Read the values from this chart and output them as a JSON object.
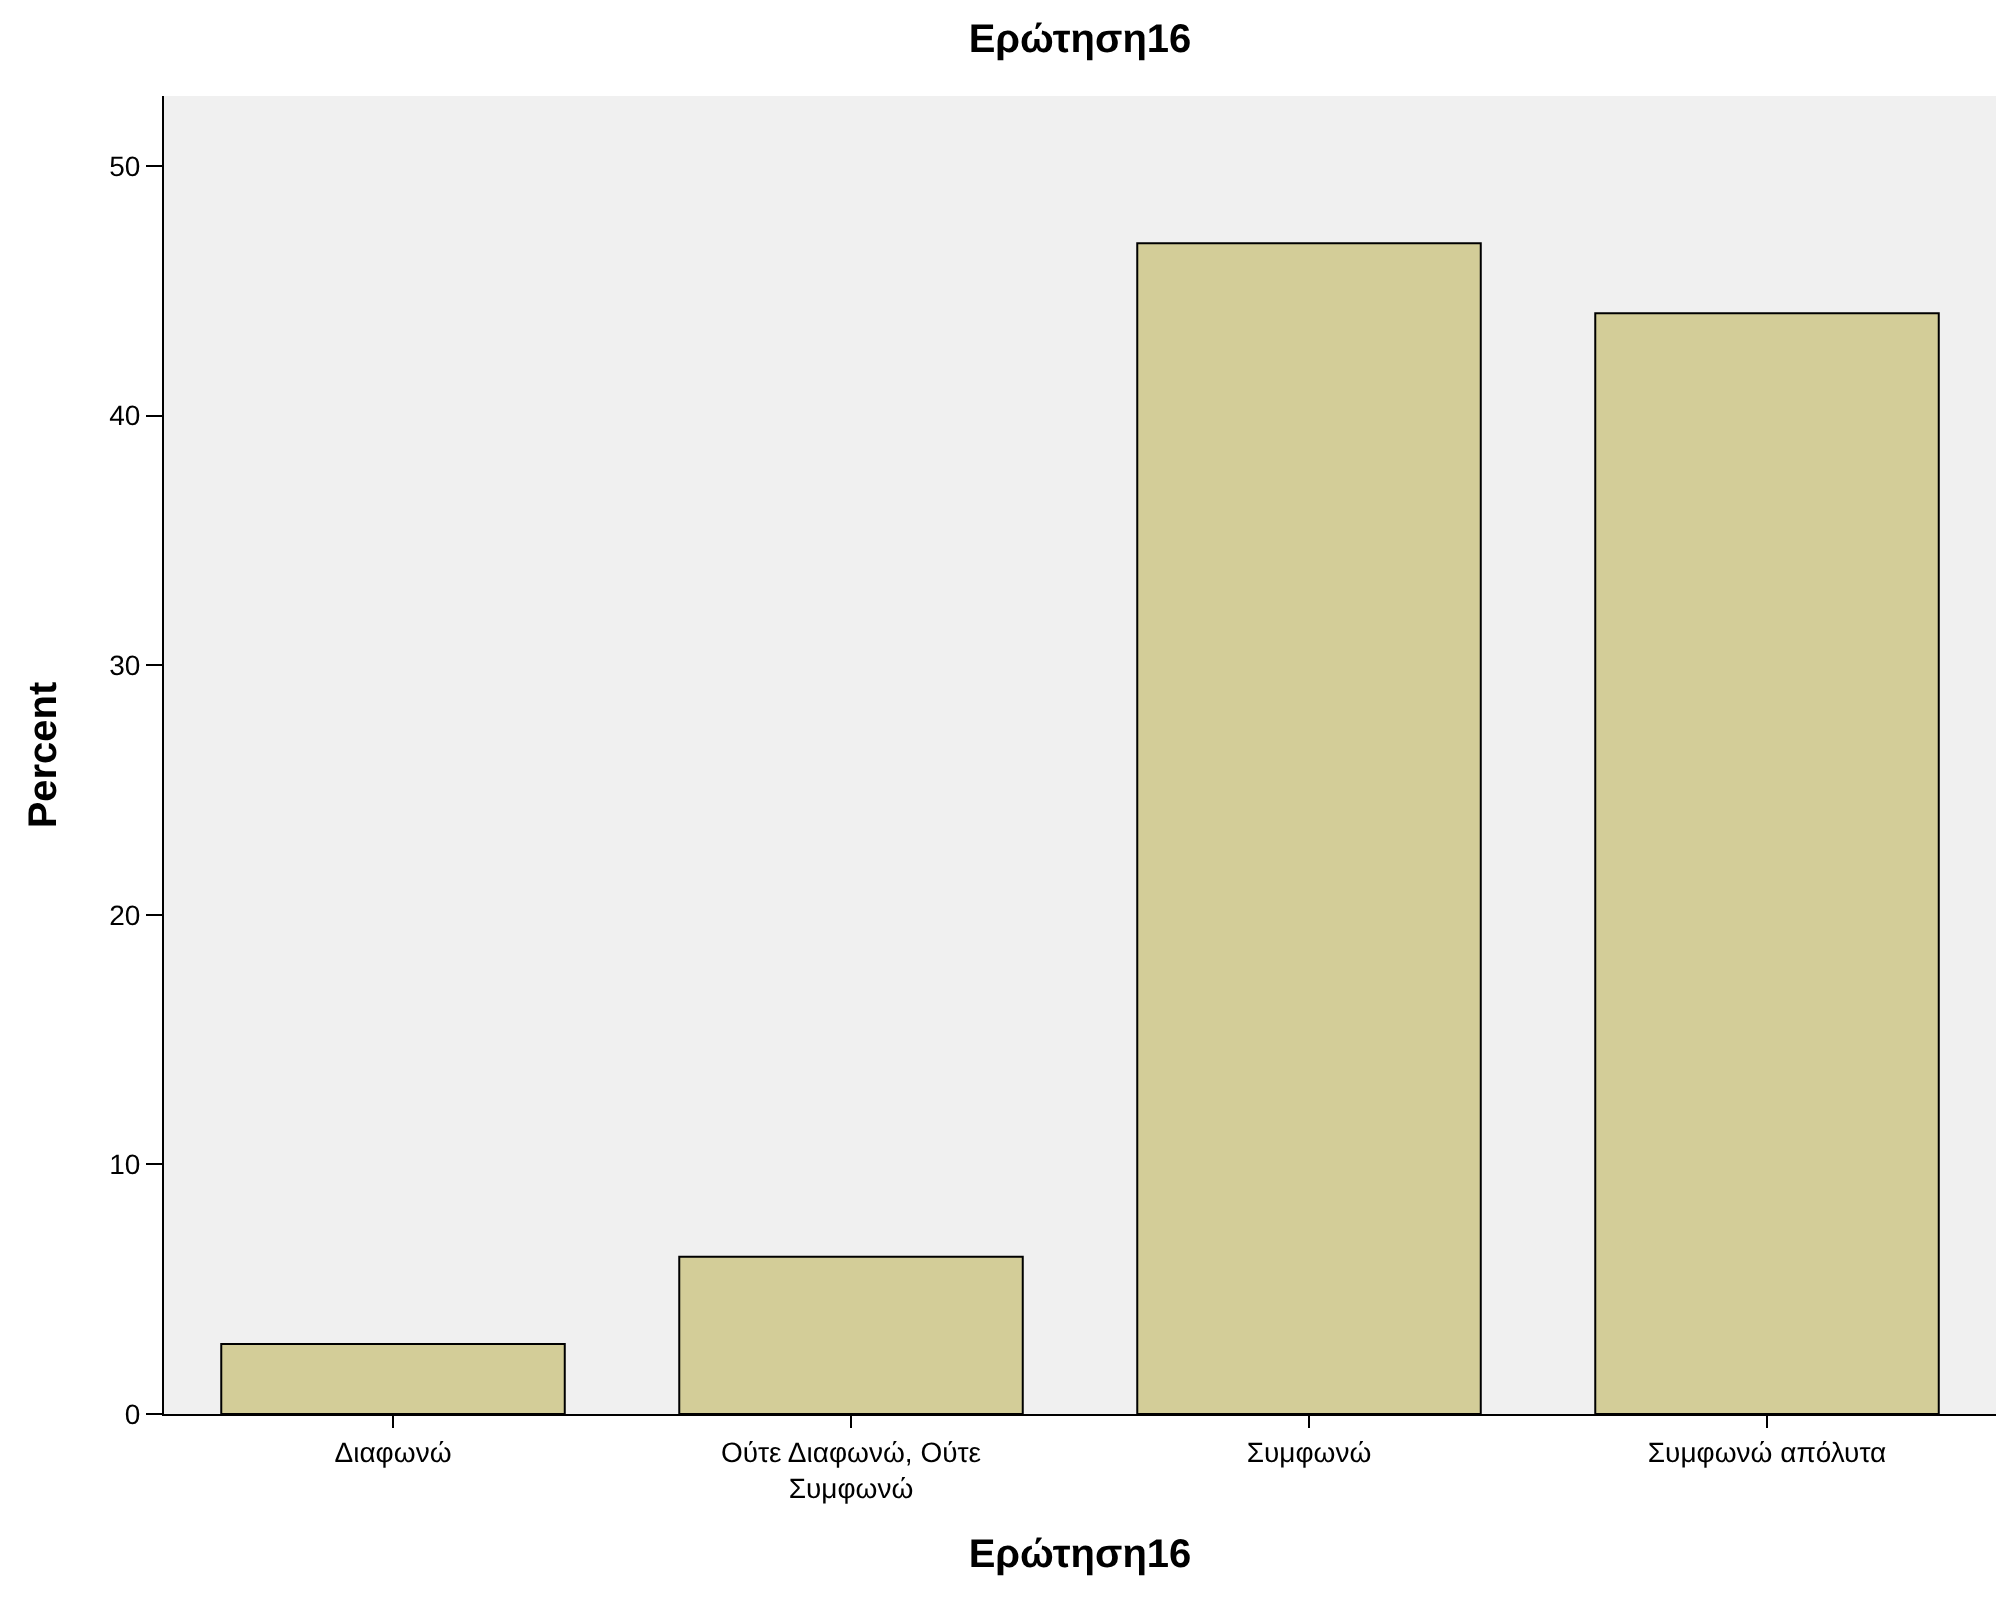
{
  "chart_data": {
    "type": "bar",
    "title": "Ερώτηση16",
    "xlabel": "Ερώτηση16",
    "ylabel": "Percent",
    "categories": [
      "Διαφωνώ",
      "Ούτε Διαφωνώ, Ούτε Συμφωνώ",
      "Συμφωνώ",
      "Συμφωνώ απόλυτα"
    ],
    "values": [
      2.8,
      6.3,
      46.9,
      44.1
    ],
    "color": "#d3cd98",
    "ylim": [
      0,
      52.8
    ],
    "yticks": [
      0,
      10,
      20,
      30,
      40,
      50
    ],
    "grid": false,
    "legend": false
  }
}
